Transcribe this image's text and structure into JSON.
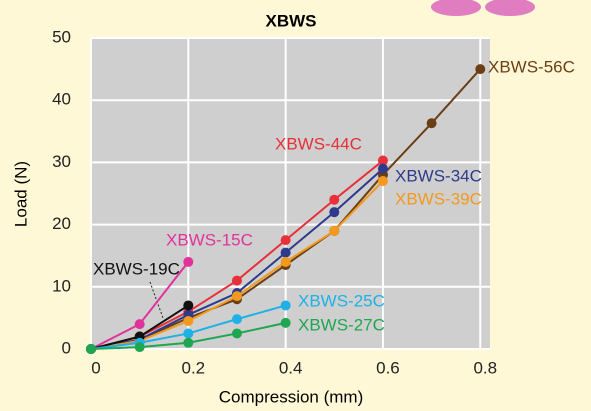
{
  "chart_data": {
    "type": "line",
    "title": "XBWS",
    "x_label": "Compression (mm)",
    "y_label": "Load (N)",
    "xlim": [
      0,
      0.82
    ],
    "ylim": [
      0,
      50
    ],
    "xticks": [
      0,
      0.2,
      0.4,
      0.6,
      0.8
    ],
    "yticks": [
      0,
      10,
      20,
      30,
      40,
      50
    ],
    "grid": true,
    "series": [
      {
        "name": "XBWS-56C",
        "color": "#6b3f16",
        "x": [
          0,
          0.1,
          0.2,
          0.3,
          0.4,
          0.5,
          0.6,
          0.7,
          0.8
        ],
        "values": [
          0,
          1.5,
          5,
          8,
          13.5,
          19,
          28,
          36.3,
          45
        ]
      },
      {
        "name": "XBWS-44C",
        "color": "#e8303a",
        "x": [
          0,
          0.1,
          0.2,
          0.3,
          0.4,
          0.5,
          0.6
        ],
        "values": [
          0,
          2,
          6,
          11,
          17.5,
          24,
          30.3
        ]
      },
      {
        "name": "XBWS-34C",
        "color": "#2e3a8c",
        "x": [
          0,
          0.1,
          0.2,
          0.3,
          0.4,
          0.5,
          0.6
        ],
        "values": [
          0,
          1.5,
          5.5,
          9,
          15.5,
          22,
          29
        ]
      },
      {
        "name": "XBWS-39C",
        "color": "#f39a1e",
        "x": [
          0,
          0.1,
          0.2,
          0.3,
          0.4,
          0.5,
          0.6
        ],
        "values": [
          0,
          1.3,
          4.5,
          8.5,
          14,
          19,
          27
        ]
      },
      {
        "name": "XBWS-15C",
        "color": "#e0339a",
        "x": [
          0,
          0.1,
          0.2
        ],
        "values": [
          0,
          4,
          14
        ]
      },
      {
        "name": "XBWS-19C",
        "color": "#111111",
        "x": [
          0,
          0.1,
          0.2
        ],
        "values": [
          0,
          2,
          7
        ]
      },
      {
        "name": "XBWS-25C",
        "color": "#1fb1e6",
        "x": [
          0,
          0.1,
          0.2,
          0.3,
          0.4
        ],
        "values": [
          0,
          1,
          2.5,
          4.8,
          7
        ]
      },
      {
        "name": "XBWS-27C",
        "color": "#1fa650",
        "x": [
          0,
          0.1,
          0.2,
          0.3,
          0.4
        ],
        "values": [
          0,
          0.3,
          1,
          2.5,
          4.2
        ]
      }
    ]
  }
}
